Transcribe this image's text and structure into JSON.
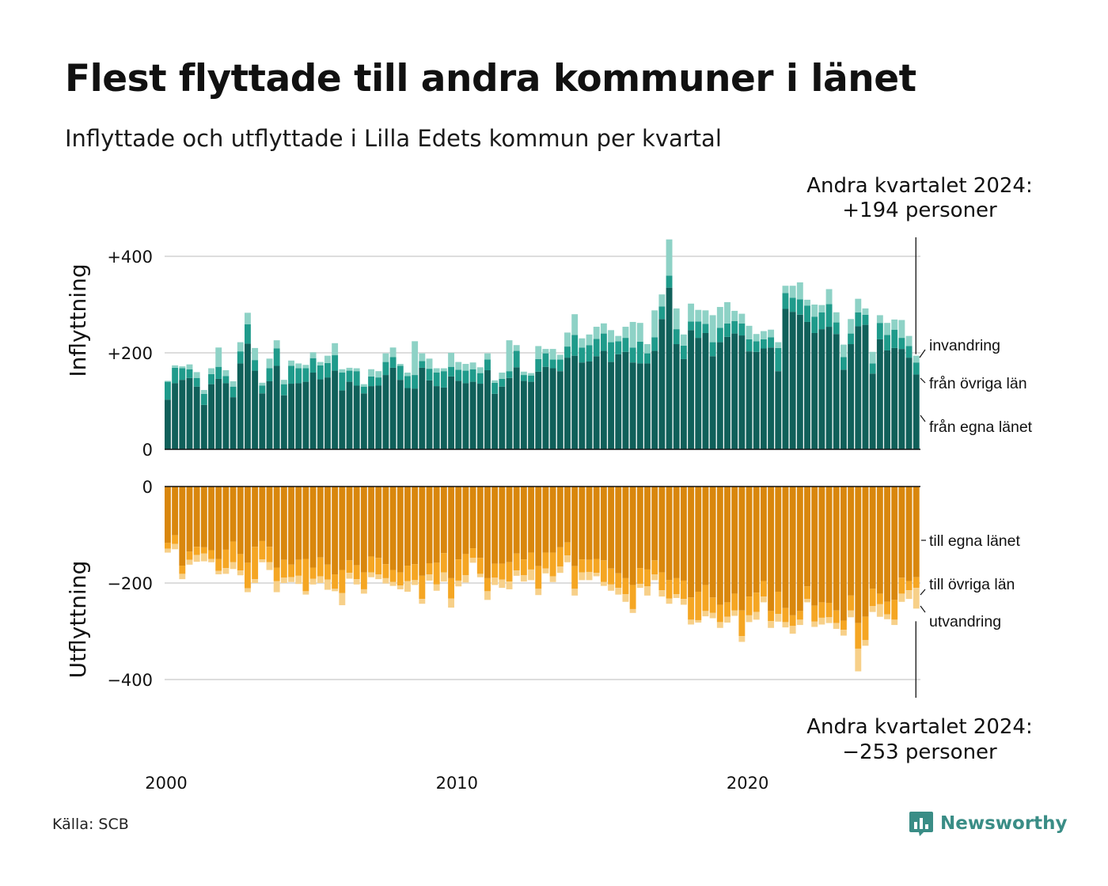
{
  "header": {
    "title": "Flest flyttade till andra kommuner i länet",
    "subtitle": "Inflyttade och utflyttade i Lilla Edets kommun per kvartal"
  },
  "footer": {
    "source": "Källa: SCB",
    "brand": "Newsworthy"
  },
  "colors": {
    "in_egna": "#10605a",
    "in_ovriga": "#1f9b8b",
    "in_invandring": "#8ed2c6",
    "ut_egna": "#d9870d",
    "ut_ovriga": "#f5a623",
    "ut_utvandring": "#f7d089",
    "gridline": "#dddddd",
    "axis": "#111111",
    "brand": "#3a8d86"
  },
  "chart_data": [
    {
      "type": "bar",
      "stacked": true,
      "ylabel": "Inflyttning",
      "ylim": [
        0,
        440
      ],
      "yticks": [
        0,
        200,
        400
      ],
      "ytick_labels": [
        "0",
        "+200",
        "+400"
      ],
      "x_start": "2000 Q1",
      "x_ticks": [
        "2000",
        "2010",
        "2020"
      ],
      "grid": true,
      "legend_position": "right (labels at last bar)",
      "annotation": {
        "line1": "Andra kvartalet 2024:",
        "line2": "+194 personer"
      },
      "series": [
        {
          "name": "från egna länet",
          "values": [
            103,
            137,
            144,
            148,
            130,
            92,
            135,
            146,
            137,
            108,
            178,
            219,
            163,
            116,
            141,
            173,
            112,
            136,
            137,
            140,
            159,
            145,
            149,
            163,
            122,
            140,
            132,
            116,
            131,
            132,
            154,
            169,
            144,
            127,
            126,
            169,
            143,
            131,
            128,
            151,
            142,
            137,
            140,
            136,
            164,
            115,
            130,
            148,
            170,
            142,
            140,
            161,
            171,
            168,
            162,
            190,
            194,
            180,
            182,
            193,
            204,
            181,
            197,
            202,
            180,
            178,
            178,
            204,
            270,
            335,
            218,
            187,
            247,
            231,
            241,
            193,
            222,
            233,
            240,
            236,
            203,
            202,
            209,
            211,
            162,
            291,
            285,
            279,
            264,
            241,
            249,
            254,
            239,
            165,
            218,
            255,
            258,
            157,
            228,
            205,
            210,
            208,
            190,
            155
          ]
        },
        {
          "name": "från övriga län",
          "values": [
            37,
            32,
            24,
            18,
            18,
            23,
            21,
            25,
            15,
            22,
            25,
            40,
            22,
            16,
            27,
            36,
            23,
            37,
            31,
            28,
            30,
            29,
            30,
            32,
            37,
            23,
            30,
            14,
            20,
            17,
            27,
            22,
            29,
            25,
            28,
            14,
            24,
            28,
            34,
            20,
            23,
            26,
            26,
            22,
            22,
            23,
            16,
            14,
            34,
            12,
            13,
            26,
            28,
            18,
            24,
            23,
            43,
            31,
            34,
            36,
            36,
            41,
            27,
            29,
            31,
            45,
            21,
            28,
            26,
            25,
            31,
            28,
            18,
            34,
            19,
            29,
            30,
            28,
            26,
            25,
            25,
            22,
            19,
            21,
            48,
            33,
            29,
            32,
            34,
            34,
            35,
            47,
            24,
            26,
            22,
            29,
            21,
            21,
            34,
            32,
            38,
            23,
            24,
            25
          ]
        },
        {
          "name": "invandring",
          "values": [
            2,
            5,
            4,
            10,
            12,
            8,
            12,
            40,
            12,
            11,
            19,
            24,
            25,
            6,
            20,
            17,
            9,
            11,
            10,
            7,
            12,
            7,
            15,
            25,
            7,
            6,
            6,
            5,
            15,
            13,
            18,
            20,
            4,
            7,
            70,
            16,
            21,
            9,
            6,
            29,
            16,
            14,
            14,
            12,
            13,
            5,
            13,
            64,
            12,
            7,
            5,
            27,
            9,
            22,
            10,
            29,
            43,
            19,
            22,
            25,
            21,
            25,
            11,
            23,
            53,
            39,
            19,
            56,
            25,
            75,
            43,
            23,
            37,
            24,
            28,
            56,
            43,
            44,
            21,
            20,
            28,
            15,
            17,
            16,
            12,
            15,
            25,
            35,
            12,
            25,
            15,
            31,
            21,
            26,
            30,
            28,
            13,
            24,
            16,
            25,
            21,
            37,
            21,
            14
          ]
        }
      ]
    },
    {
      "type": "bar",
      "stacked": true,
      "ylabel": "Utflyttning",
      "ylim": [
        -440,
        0
      ],
      "yticks": [
        0,
        -200,
        -400
      ],
      "ytick_labels": [
        "0",
        "−200",
        "−400"
      ],
      "x_start": "2000 Q1",
      "x_ticks": [
        "2000",
        "2010",
        "2020"
      ],
      "grid": true,
      "legend_position": "right (labels at last bar)",
      "annotation": {
        "line1": "Andra kvartalet 2024:",
        "line2": "−253 personer"
      },
      "series": [
        {
          "name": "till egna länet",
          "values": [
            -117,
            -101,
            -164,
            -135,
            -125,
            -126,
            -132,
            -150,
            -131,
            -114,
            -140,
            -158,
            -125,
            -113,
            -125,
            -168,
            -152,
            -162,
            -152,
            -150,
            -168,
            -147,
            -162,
            -182,
            -173,
            -153,
            -163,
            -178,
            -145,
            -148,
            -161,
            -173,
            -178,
            -164,
            -161,
            -185,
            -159,
            -158,
            -138,
            -190,
            -151,
            -140,
            -128,
            -148,
            -190,
            -160,
            -160,
            -157,
            -139,
            -151,
            -137,
            -165,
            -137,
            -137,
            -126,
            -116,
            -165,
            -151,
            -152,
            -150,
            -153,
            -170,
            -180,
            -190,
            -204,
            -169,
            -172,
            -153,
            -178,
            -194,
            -190,
            -195,
            -230,
            -218,
            -204,
            -230,
            -245,
            -240,
            -222,
            -257,
            -228,
            -220,
            -196,
            -258,
            -218,
            -252,
            -267,
            -258,
            -207,
            -247,
            -240,
            -241,
            -257,
            -278,
            -226,
            -283,
            -270,
            -212,
            -222,
            -239,
            -235,
            -189,
            -196,
            -188
          ]
        },
        {
          "name": "till övriga län",
          "values": [
            -12,
            -18,
            -17,
            -17,
            -17,
            -13,
            -18,
            -25,
            -38,
            -43,
            -34,
            -53,
            -67,
            -38,
            -32,
            -28,
            -37,
            -26,
            -33,
            -67,
            -23,
            -39,
            -31,
            -30,
            -48,
            -26,
            -29,
            -35,
            -33,
            -34,
            -29,
            -25,
            -27,
            -32,
            -33,
            -48,
            -23,
            -45,
            -40,
            -42,
            -44,
            -44,
            -20,
            -33,
            -27,
            -29,
            -33,
            -40,
            -35,
            -33,
            -35,
            -47,
            -33,
            -49,
            -40,
            -27,
            -47,
            -27,
            -25,
            -29,
            -45,
            -33,
            -30,
            -33,
            -50,
            -33,
            -35,
            -29,
            -37,
            -38,
            -33,
            -38,
            -46,
            -59,
            -54,
            -32,
            -36,
            -30,
            -35,
            -53,
            -39,
            -40,
            -32,
            -21,
            -46,
            -29,
            -22,
            -18,
            -26,
            -33,
            -32,
            -30,
            -26,
            -19,
            -31,
            -53,
            -48,
            -36,
            -22,
            -26,
            -41,
            -33,
            -19,
            -22
          ]
        },
        {
          "name": "utvandring",
          "values": [
            -8,
            -11,
            -11,
            -10,
            -14,
            -16,
            -7,
            -7,
            -12,
            -14,
            -10,
            -8,
            -8,
            -6,
            -16,
            -23,
            -11,
            -10,
            -17,
            -7,
            -12,
            -14,
            -21,
            -5,
            -25,
            -12,
            -11,
            -9,
            -10,
            -10,
            -11,
            -8,
            -8,
            -22,
            -10,
            -10,
            -13,
            -13,
            -19,
            -19,
            -12,
            -15,
            -10,
            -7,
            -18,
            -15,
            -17,
            -16,
            -11,
            -13,
            -22,
            -13,
            -10,
            -12,
            -13,
            -14,
            -14,
            -16,
            -17,
            -7,
            -8,
            -13,
            -14,
            -16,
            -8,
            -8,
            -19,
            -12,
            -13,
            -11,
            -8,
            -12,
            -10,
            -5,
            -11,
            -11,
            -12,
            -12,
            -11,
            -12,
            -14,
            -16,
            -12,
            -14,
            -16,
            -11,
            -16,
            -11,
            -7,
            -11,
            -14,
            -12,
            -12,
            -12,
            -14,
            -47,
            -12,
            -12,
            -26,
            -10,
            -11,
            -17,
            -18,
            -43
          ]
        }
      ]
    }
  ]
}
